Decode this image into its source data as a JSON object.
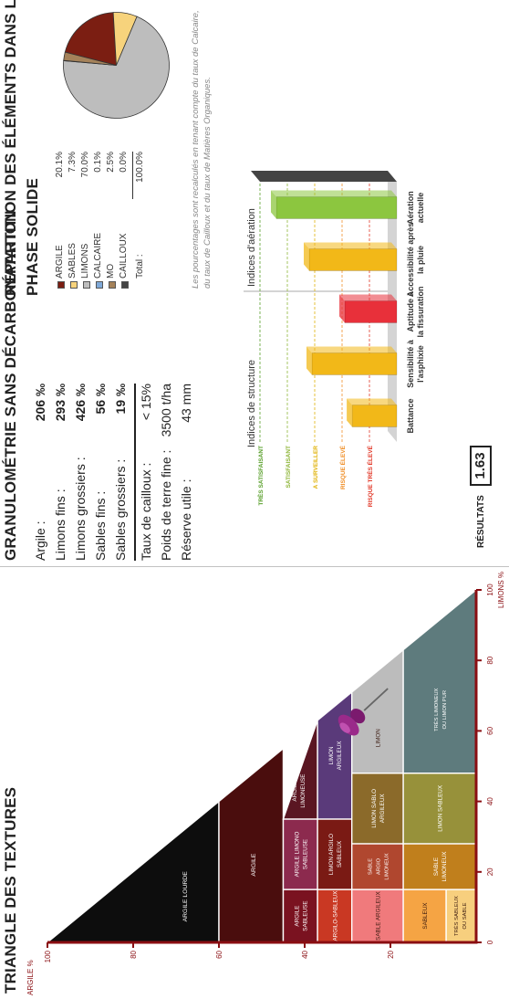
{
  "texture_triangle": {
    "title": "TRIANGLE DES TEXTURES",
    "y_axis_label": "ARGILE %",
    "x_axis_label": "LIMONS %",
    "y_ticks": [
      "100",
      "80",
      "60",
      "40",
      "20"
    ],
    "x_ticks": [
      "0",
      "20",
      "40",
      "60",
      "80",
      "100"
    ],
    "classes": {
      "argile_lourde": "ARGILE LOURDE",
      "argile": "ARGILE",
      "argile_sableuse": [
        "ARGILE",
        "SABLEUSE"
      ],
      "argile_limono_sableuse": [
        "ARGILE LIMONO",
        "SABLEUSE"
      ],
      "argile_limoneuse": [
        "ARGILE",
        "LIMONEUSE"
      ],
      "argilo_sableux": "ARGILO-SABLEUX",
      "limon_argilo_sableux": [
        "LIMON ARGILO",
        "SABLEUX"
      ],
      "limon_argileux": [
        "LIMON",
        "ARGILEUX"
      ],
      "sable_argileux": "SABLE ARGILEUX",
      "sable_argio_limoneux": [
        "SABLE",
        "ARGIO",
        "LIMONEUX"
      ],
      "limon_sablo_argileux": [
        "LIMON SABLO",
        "ARGILEUX"
      ],
      "limon": "LIMON",
      "sableux": "SABLEUX",
      "tres_sableux": [
        "TRÈS SABLEUX",
        "OU SABLE"
      ],
      "sable_limoneux": [
        "SABLE",
        "LIMONEUX"
      ],
      "limon_sableux": "LIMON SABLEUX",
      "tres_limoneux": [
        "TRÈS LIMONEUX",
        "OU LIMON PUR"
      ]
    },
    "colors": {
      "argile_lourde": "#0d0d0d",
      "argile": "#4a0d0d",
      "argile_sableuse": "#7a1220",
      "argile_limono_sableuse": "#8c2a4e",
      "argile_limoneuse": "#5a1622",
      "argilo_sableux": "#c93823",
      "limon_argilo_sableux": "#7a1a14",
      "limon_argileux": "#5a3a7a",
      "sable_argileux": "#f07a7c",
      "sable_argio_limoneux": "#b0472f",
      "limon_sablo_argileux": "#8b6a2a",
      "limon": "#bcbcbc",
      "sableux": "#f5a444",
      "tres_sableux": "#f7cf7e",
      "sable_limoneux": "#c07f1c",
      "limon_sableux": "#97913a",
      "tres_limoneux": "#5e7b7d"
    },
    "sample_point": {
      "limons_pct": 72.0,
      "argile_pct": 20.6
    }
  },
  "granulometrie": {
    "title": "GRANULOMÉTRIE SANS DÉCARBONATATION",
    "rows": [
      {
        "label": "Argile :",
        "value": "206 ‰"
      },
      {
        "label": "Limons fins :",
        "value": "293 ‰"
      },
      {
        "label": "Limons grossiers :",
        "value": "426 ‰"
      },
      {
        "label": "Sables fins :",
        "value": "56 ‰"
      },
      {
        "label": "Sables grossiers :",
        "value": "19 ‰"
      }
    ],
    "extra": [
      {
        "label": "Taux de cailloux :",
        "value": "< 15%"
      },
      {
        "label": "Poids de terre fine :",
        "value": "3500 t/ha"
      },
      {
        "label": "Réserve utile :",
        "value": "43 mm"
      }
    ]
  },
  "indices": {
    "y_label_left": "Indices de structure",
    "y_label_right": "Indices d'aération",
    "ratings": [
      "TRÈS SATISFAISANT",
      "SATISFAISANT",
      "A SURVEILLER",
      "RISQUE ÉLEVÉ",
      "RISQUE TRÈS ÉLEVÉ"
    ],
    "rating_colors": [
      "#5aa02c",
      "#8fb63a",
      "#e0b30c",
      "#f0902a",
      "#e23b2b"
    ],
    "categories": [
      "Battance",
      "Sensibilité à l'asphixie",
      "Aptitude à la fissuration",
      "Accessibilité après la pluie",
      "Aération actuelle"
    ],
    "values": [
      1.63,
      3.1,
      1.9,
      3.2,
      4.4
    ],
    "bar_colors": [
      "#f2b818",
      "#f2b818",
      "#e8303a",
      "#f2b818",
      "#8cc63f"
    ],
    "result_label": "RÉSULTATS",
    "result_value": "1.63"
  },
  "repartition": {
    "title_line1": "RÉPARTITION DES ÉLÉMENTS DANS LA",
    "title_line2": "PHASE SOLIDE",
    "legend": [
      {
        "name": "ARGILE",
        "pct": "20.1%",
        "color": "#7b1e12"
      },
      {
        "name": "SABLES",
        "pct": "7.3%",
        "color": "#f7d37c"
      },
      {
        "name": "LIMONS",
        "pct": "70.0%",
        "color": "#bdbdbd"
      },
      {
        "name": "CALCAIRE",
        "pct": "0.1%",
        "color": "#7fa9d8"
      },
      {
        "name": "MO",
        "pct": "2.5%",
        "color": "#a5825a"
      },
      {
        "name": "CAILLOUX",
        "pct": "0.0%",
        "color": "#444444"
      }
    ],
    "total_label": "Total :",
    "total_value": "100.0%",
    "note": "Les pourcentages sont recalculés en tenant compte du taux de Calcaire, du taux de Cailloux et du taux de Matières Organiques."
  },
  "chart_data": [
    {
      "type": "bar",
      "categories": [
        "Battance",
        "Sensibilité à l'asphixie",
        "Aptitude à la fissuration",
        "Accessibilité après la pluie",
        "Aération actuelle"
      ],
      "values": [
        1.63,
        3.1,
        1.9,
        3.2,
        4.4
      ],
      "ylabel": "Indices de structure"
    },
    {
      "type": "pie",
      "categories": [
        "ARGILE",
        "SABLES",
        "LIMONS",
        "CALCAIRE",
        "MO",
        "CAILLOUX"
      ],
      "values": [
        20.1,
        7.3,
        70.0,
        0.1,
        2.5,
        0.0
      ]
    }
  ]
}
